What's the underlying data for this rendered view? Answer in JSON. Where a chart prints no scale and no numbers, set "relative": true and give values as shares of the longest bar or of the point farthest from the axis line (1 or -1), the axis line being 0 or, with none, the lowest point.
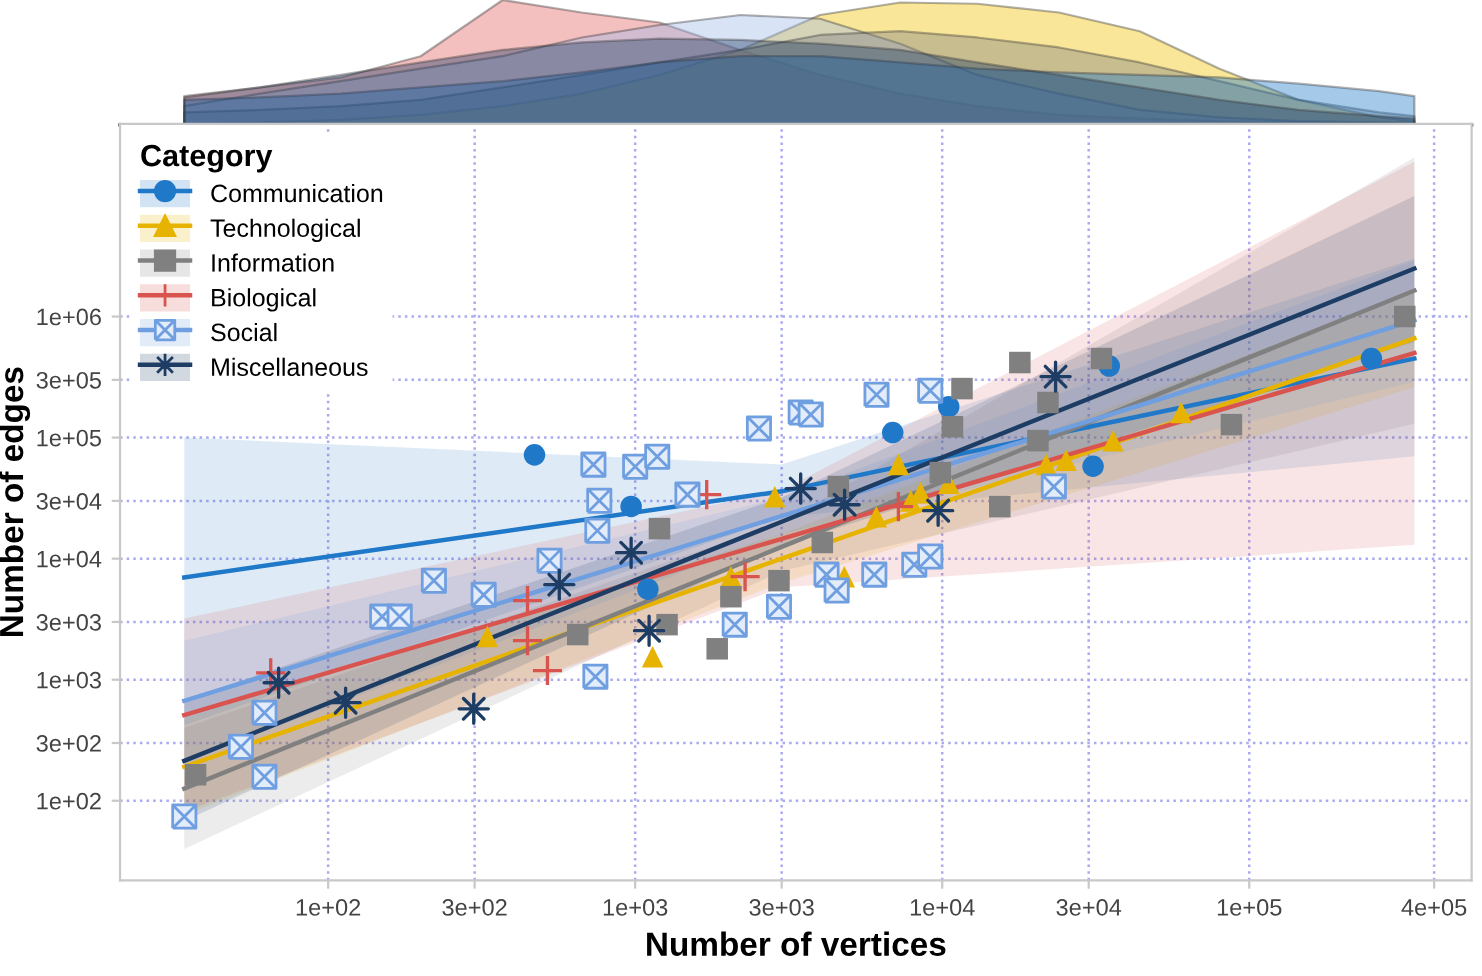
{
  "chart_data": [
    {
      "type": "area",
      "relative": true,
      "log": "x",
      "xlim": [
        21,
        530000
      ],
      "tick_labels": false,
      "x": [
        34,
        60,
        110,
        200,
        370,
        670,
        1200,
        2200,
        4000,
        7300,
        13000,
        24000,
        44000,
        80000,
        145000,
        265000,
        345000
      ],
      "series": [
        {
          "color": "#e06060",
          "values": [
            0.23,
            0.3,
            0.38,
            0.55,
            1.0,
            0.9,
            0.82,
            0.6,
            0.4,
            0.25,
            0.15,
            0.08,
            0.05,
            0.03,
            0.02,
            0.01,
            0.01
          ]
        },
        {
          "color": "#f0c000",
          "values": [
            0.01,
            0.02,
            0.04,
            0.08,
            0.15,
            0.25,
            0.4,
            0.6,
            0.88,
            0.98,
            0.97,
            0.9,
            0.75,
            0.45,
            0.2,
            0.06,
            0.03
          ]
        },
        {
          "color": "#9fb8e8",
          "values": [
            0.15,
            0.25,
            0.35,
            0.45,
            0.55,
            0.7,
            0.8,
            0.88,
            0.85,
            0.65,
            0.4,
            0.25,
            0.12,
            0.06,
            0.03,
            0.02,
            0.02
          ]
        },
        {
          "color": "#808080",
          "values": [
            0.1,
            0.12,
            0.15,
            0.2,
            0.3,
            0.4,
            0.5,
            0.6,
            0.72,
            0.75,
            0.7,
            0.62,
            0.5,
            0.35,
            0.2,
            0.1,
            0.07
          ]
        },
        {
          "color": "#1f78c8",
          "values": [
            0.2,
            0.22,
            0.25,
            0.3,
            0.35,
            0.42,
            0.5,
            0.55,
            0.55,
            0.5,
            0.45,
            0.42,
            0.4,
            0.38,
            0.33,
            0.27,
            0.23
          ]
        },
        {
          "color": "#1e3d64",
          "values": [
            0.22,
            0.3,
            0.4,
            0.5,
            0.6,
            0.66,
            0.69,
            0.68,
            0.65,
            0.6,
            0.5,
            0.4,
            0.3,
            0.2,
            0.12,
            0.07,
            0.05
          ]
        }
      ]
    },
    {
      "type": "scatter",
      "log": "xy",
      "xlim": [
        21,
        530000
      ],
      "ylim": [
        22,
        39000000
      ],
      "xticks": [
        {
          "value": 100,
          "label": "1e+02"
        },
        {
          "value": 300,
          "label": "3e+02"
        },
        {
          "value": 1000,
          "label": "1e+03"
        },
        {
          "value": 3000,
          "label": "3e+03"
        },
        {
          "value": 10000,
          "label": "1e+04"
        },
        {
          "value": 30000,
          "label": "3e+04"
        },
        {
          "value": 100000,
          "label": "1e+05"
        },
        {
          "value": 400000,
          "label": "4e+05"
        }
      ],
      "yticks": [
        {
          "value": 100,
          "label": "1e+02"
        },
        {
          "value": 300,
          "label": "3e+02"
        },
        {
          "value": 1000,
          "label": "1e+03"
        },
        {
          "value": 3000,
          "label": "3e+03"
        },
        {
          "value": 10000,
          "label": "1e+04"
        },
        {
          "value": 30000,
          "label": "3e+04"
        },
        {
          "value": 100000,
          "label": "1e+05"
        },
        {
          "value": 300000,
          "label": "3e+05"
        },
        {
          "value": 1000000,
          "label": "1e+06"
        }
      ],
      "xlabel": "Number of vertices",
      "ylabel": "Number of edges",
      "legend": "top left",
      "legend_title": "Category",
      "grid": true,
      "series": [
        {
          "type": "line",
          "color": "#1f78c8",
          "x": [
            34,
            3000,
            345000
          ],
          "values": [
            7000,
            36000,
            450000
          ],
          "lower": [
            420,
            22000,
            70000
          ],
          "upper": [
            100000,
            60000,
            3000000
          ]
        },
        {
          "type": "line",
          "color": "#e6b400",
          "x": [
            34,
            3000,
            345000
          ],
          "values": [
            191,
            10000,
            660000
          ],
          "lower": [
            76,
            6300,
            260000
          ],
          "upper": [
            480,
            16000,
            1650000
          ]
        },
        {
          "type": "line",
          "color": "#808080",
          "x": [
            34,
            3000,
            345000
          ],
          "values": [
            126,
            12500,
            1640000
          ],
          "lower": [
            40,
            7900,
            130000
          ],
          "upper": [
            400,
            19800,
            20600000
          ]
        },
        {
          "type": "line",
          "color": "#d9534f",
          "x": [
            34,
            3000,
            345000
          ],
          "values": [
            510,
            14600,
            500000
          ],
          "lower": [
            81,
            5800,
            13000
          ],
          "upper": [
            3200,
            36700,
            19000000
          ]
        },
        {
          "type": "line",
          "color": "#6f9fe0",
          "x": [
            34,
            3000,
            345000
          ],
          "values": [
            670,
            22500,
            930000
          ],
          "lower": [
            210,
            15900,
            290000
          ],
          "upper": [
            2100,
            31800,
            2900000
          ]
        },
        {
          "type": "line",
          "color": "#1e3d64",
          "x": [
            34,
            3000,
            345000
          ],
          "values": [
            214,
            20200,
            2490000
          ],
          "lower": [
            68,
            12700,
            620000
          ],
          "upper": [
            680,
            32000,
            9900000
          ]
        },
        {
          "name": "Communication",
          "color": "#1f78c8",
          "marker": "circle",
          "x": [
            470,
            970,
            1100,
            6900,
            10500,
            31000,
            35000,
            250000
          ],
          "values": [
            72000,
            27000,
            5600,
            110000,
            180000,
            58000,
            390000,
            450000
          ]
        },
        {
          "name": "Technological",
          "color": "#e6b400",
          "marker": "triangle",
          "x": [
            330,
            1140,
            2050,
            2850,
            4800,
            6100,
            7200,
            7900,
            8500,
            10500,
            21800,
            25300,
            36000,
            60000
          ],
          "values": [
            2270,
            1550,
            7100,
            32500,
            7100,
            22200,
            60000,
            30000,
            35000,
            42000,
            60000,
            65000,
            94000,
            161000
          ]
        },
        {
          "name": "Information",
          "color": "#808080",
          "marker": "square",
          "x": [
            37,
            650,
            1200,
            1270,
            1850,
            2050,
            2940,
            4070,
            4590,
            10800,
            11600,
            9860,
            15400,
            17900,
            20500,
            22100,
            33000,
            87500,
            321000
          ],
          "values": [
            164,
            2360,
            17700,
            2850,
            1800,
            4850,
            6580,
            13600,
            39400,
            123000,
            254000,
            51400,
            26900,
            417000,
            94400,
            195000,
            450000,
            128000,
            1000000
          ]
        },
        {
          "name": "Biological",
          "color": "#d9534f",
          "marker": "cross",
          "x": [
            65,
            446,
            446,
            518,
            1710,
            2280,
            7200
          ],
          "values": [
            1140,
            4500,
            2100,
            1190,
            33800,
            7100,
            26900
          ]
        },
        {
          "name": "Social",
          "color": "#6f9fe0",
          "marker": "cross",
          "x": [
            34,
            52,
            62,
            62,
            150,
            171,
            221,
            321,
            526,
            731,
            764,
            753,
            1000,
            1180,
            1480,
            742,
            2110,
            2530,
            3460,
            3730,
            6110,
            2940,
            4200,
            4530,
            6010,
            8110,
            9140,
            23100,
            9140
          ],
          "values": [
            74,
            279,
            158,
            533,
            3320,
            3320,
            6580,
            5030,
            9610,
            59800,
            30100,
            17000,
            57500,
            69600,
            33800,
            1060,
            2850,
            119000,
            161000,
            155000,
            226000,
            4010,
            7380,
            5450,
            7380,
            8910,
            10400,
            39400,
            244000
          ]
        },
        {
          "name": "Miscellaneous",
          "color": "#1e3d64",
          "marker": "star",
          "x": [
            69,
            114,
            298,
            566,
            970,
            1110,
            3460,
            4810,
            9700,
            23400
          ],
          "values": [
            944,
            646,
            575,
            6100,
            11200,
            2540,
            37900,
            27900,
            24900,
            319000
          ]
        }
      ]
    }
  ]
}
